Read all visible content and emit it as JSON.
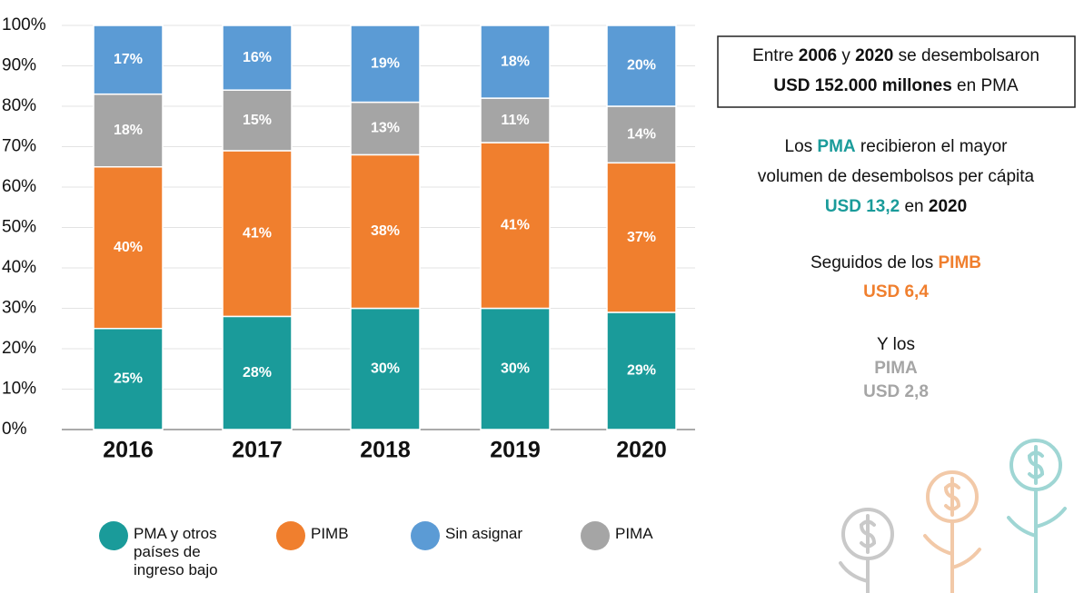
{
  "chart_data": {
    "type": "stacked_bar",
    "categories": [
      "2016",
      "2017",
      "2018",
      "2019",
      "2020"
    ],
    "series": [
      {
        "name": "PMA y otros países de ingreso bajo",
        "color": "#1a9b9a",
        "values": [
          25,
          28,
          30,
          30,
          29
        ],
        "value_labels": [
          "25%",
          "28%",
          "30%",
          "30%",
          "29%"
        ]
      },
      {
        "name": "PIMB",
        "color": "#f07f2e",
        "values": [
          40,
          41,
          38,
          41,
          37
        ],
        "value_labels": [
          "40%",
          "41%",
          "38%",
          "41%",
          "37%"
        ]
      },
      {
        "name": "Sin asignar",
        "color": "#5b9bd5",
        "values": [
          17,
          16,
          19,
          18,
          20
        ],
        "value_labels": [
          "17%",
          "16%",
          "19%",
          "18%",
          "20%"
        ]
      },
      {
        "name": "PIMA",
        "color": "#a5a5a5",
        "values": [
          18,
          15,
          13,
          11,
          14
        ],
        "value_labels": [
          "18%",
          "15%",
          "13%",
          "11%",
          "14%"
        ]
      }
    ],
    "ylim": [
      0,
      100
    ],
    "yticks": [
      {
        "value": 0,
        "label": "0%"
      },
      {
        "value": 10,
        "label": "10%"
      },
      {
        "value": 20,
        "label": "20%"
      },
      {
        "value": 30,
        "label": "30%"
      },
      {
        "value": 40,
        "label": "40%"
      },
      {
        "value": 50,
        "label": "50%"
      },
      {
        "value": 60,
        "label": "60%"
      },
      {
        "value": 70,
        "label": "70%"
      },
      {
        "value": 80,
        "label": "80%"
      },
      {
        "value": 90,
        "label": "90%"
      },
      {
        "value": 100,
        "label": "100%"
      }
    ],
    "grid": true,
    "annotations": [
      {
        "boxed": true,
        "lines": [
          [
            {
              "text": "Entre "
            },
            {
              "text": "2006",
              "bold": true
            },
            {
              "text": " y "
            },
            {
              "text": "2020",
              "bold": true
            },
            {
              "text": " se desembolsaron"
            }
          ],
          [
            {
              "text": "USD 152.000 millones",
              "bold": true
            },
            {
              "text": " en PMA"
            }
          ]
        ]
      },
      {
        "boxed": false,
        "lines": [
          [
            {
              "text": "Los "
            },
            {
              "text": "PMA",
              "bold": true,
              "color": "#1a9b9a"
            },
            {
              "text": " recibieron el mayor"
            }
          ],
          [
            {
              "text": "volumen de desembolsos per cápita"
            }
          ],
          [
            {
              "text": "USD 13,2",
              "bold": true,
              "color": "#1a9b9a"
            },
            {
              "text": " en "
            },
            {
              "text": "2020",
              "bold": true
            }
          ]
        ]
      },
      {
        "boxed": false,
        "lines": [
          [
            {
              "text": "Seguidos de los "
            },
            {
              "text": "PIMB",
              "bold": true,
              "color": "#f07f2e"
            }
          ],
          [
            {
              "text": "USD 6,4",
              "bold": true,
              "color": "#f07f2e"
            }
          ]
        ]
      },
      {
        "boxed": false,
        "lines": [
          [
            {
              "text": "Y los"
            }
          ],
          [
            {
              "text": "PIMA",
              "bold": true,
              "color": "#a5a5a5"
            }
          ],
          [
            {
              "text": "USD 2,8",
              "bold": true,
              "color": "#a5a5a5"
            }
          ]
        ]
      }
    ]
  }
}
